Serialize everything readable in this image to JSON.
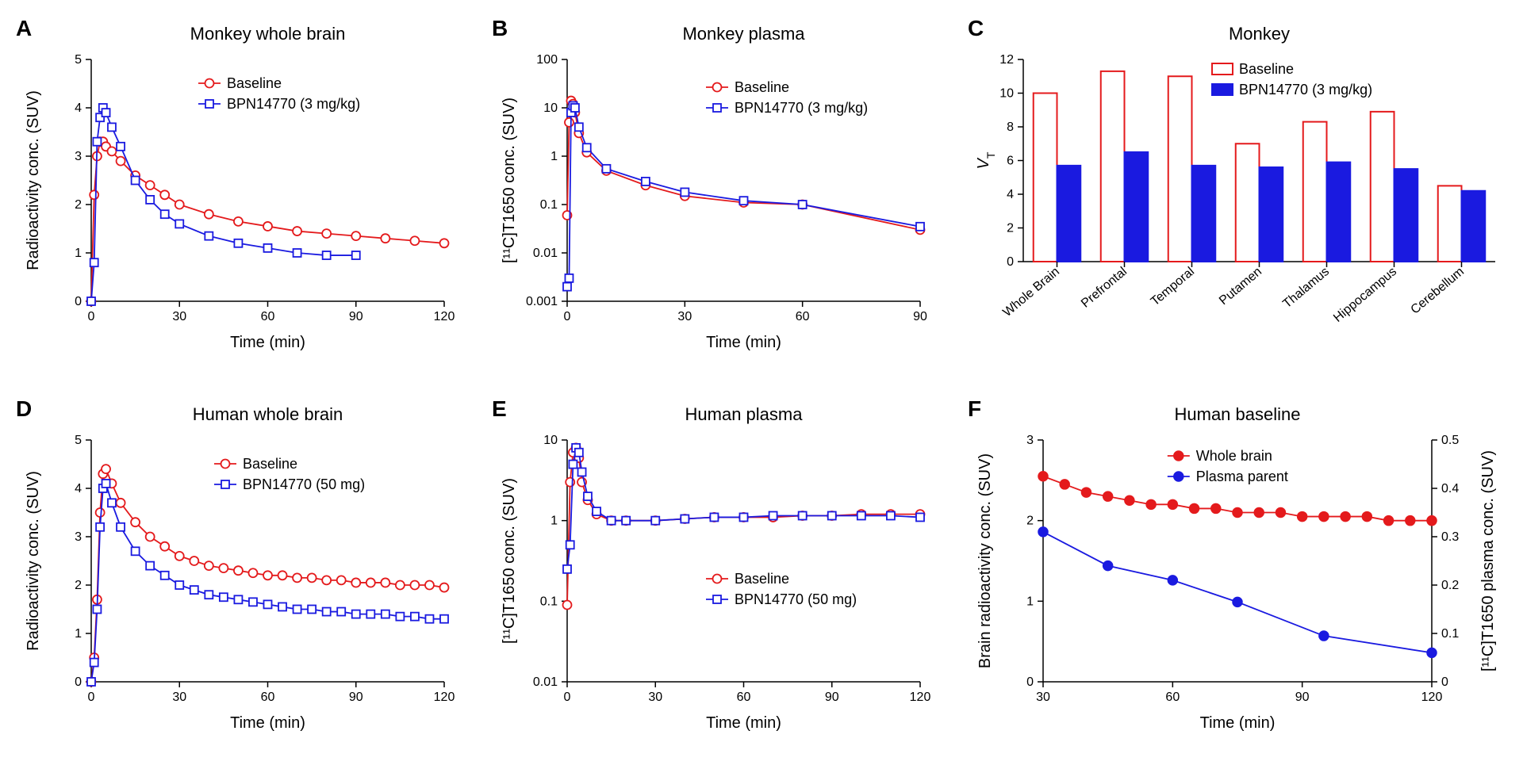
{
  "labels": {
    "A": "A",
    "B": "B",
    "C": "C",
    "D": "D",
    "E": "E",
    "F": "F"
  },
  "colors": {
    "baseline": "#e41a1c",
    "drug": "#1a1ae0",
    "red_fill": "#e41a1c",
    "blue_fill": "#1a1ae0",
    "axis": "#000000",
    "bg": "#ffffff"
  },
  "fonts": {
    "title": 22,
    "axis": 20,
    "tick": 16,
    "legend": 18,
    "label": 28
  },
  "panelA": {
    "title": "Monkey whole brain",
    "xlabel": "Time (min)",
    "ylabel": "Radioactivity conc. (SUV)",
    "xlim": [
      0,
      120
    ],
    "ylim": [
      0,
      5
    ],
    "xticks": [
      0,
      30,
      60,
      90,
      120
    ],
    "yticks": [
      0,
      1,
      2,
      3,
      4,
      5
    ],
    "legend": [
      "Baseline",
      "BPN14770 (3 mg/kg)"
    ],
    "series": [
      {
        "name": "Baseline",
        "color": "#e41a1c",
        "marker": "circle",
        "open": true,
        "x": [
          0,
          1,
          2,
          3,
          4,
          5,
          7,
          10,
          15,
          20,
          25,
          30,
          40,
          50,
          60,
          70,
          80,
          90,
          100,
          110,
          120
        ],
        "y": [
          0,
          2.2,
          3.0,
          3.3,
          3.3,
          3.2,
          3.1,
          2.9,
          2.6,
          2.4,
          2.2,
          2.0,
          1.8,
          1.65,
          1.55,
          1.45,
          1.4,
          1.35,
          1.3,
          1.25,
          1.2
        ]
      },
      {
        "name": "BPN14770 (3 mg/kg)",
        "color": "#1a1ae0",
        "marker": "square",
        "open": true,
        "x": [
          0,
          1,
          2,
          3,
          4,
          5,
          7,
          10,
          15,
          20,
          25,
          30,
          40,
          50,
          60,
          70,
          80,
          90
        ],
        "y": [
          0,
          0.8,
          3.3,
          3.8,
          4.0,
          3.9,
          3.6,
          3.2,
          2.5,
          2.1,
          1.8,
          1.6,
          1.35,
          1.2,
          1.1,
          1.0,
          0.95,
          0.95
        ]
      }
    ]
  },
  "panelB": {
    "title": "Monkey plasma",
    "xlabel": "Time (min)",
    "ylabel": "[¹¹C]T1650 conc. (SUV)",
    "xlim": [
      0,
      90
    ],
    "ylog": true,
    "ylim": [
      0.001,
      100
    ],
    "xticks": [
      0,
      30,
      60,
      90
    ],
    "yticks": [
      0.001,
      0.01,
      0.1,
      1,
      10,
      100
    ],
    "legend": [
      "Baseline",
      "BPN14770 (3 mg/kg)"
    ],
    "series": [
      {
        "name": "Baseline",
        "color": "#e41a1c",
        "marker": "circle",
        "open": true,
        "x": [
          0,
          0.5,
          1,
          1.5,
          2,
          3,
          5,
          10,
          20,
          30,
          45,
          60,
          90
        ],
        "y": [
          0.06,
          5,
          14,
          12,
          8,
          3,
          1.2,
          0.5,
          0.25,
          0.15,
          0.11,
          0.1,
          0.03
        ]
      },
      {
        "name": "BPN14770 (3 mg/kg)",
        "color": "#1a1ae0",
        "marker": "square",
        "open": true,
        "x": [
          0,
          0.5,
          1,
          1.5,
          2,
          3,
          5,
          10,
          20,
          30,
          45,
          60,
          90
        ],
        "y": [
          0.002,
          0.003,
          8,
          11,
          10,
          4,
          1.5,
          0.55,
          0.3,
          0.18,
          0.12,
          0.1,
          0.035
        ]
      }
    ]
  },
  "panelC": {
    "title": "Monkey",
    "ylabel": "Vₜ",
    "ylabel_italic": "V",
    "ylabel_sub": "T",
    "ylim": [
      0,
      12
    ],
    "yticks": [
      0,
      2,
      4,
      6,
      8,
      10,
      12
    ],
    "categories": [
      "Whole Brain",
      "Prefrontal",
      "Temporal",
      "Putamen",
      "Thalamus",
      "Hippocampus",
      "Cerebellum"
    ],
    "legend": [
      "Baseline",
      "BPN14770 (3 mg/kg)"
    ],
    "bars": {
      "Baseline": {
        "color": "#e41a1c",
        "fill": "#ffffff",
        "values": [
          10.0,
          11.3,
          11.0,
          7.0,
          8.3,
          8.9,
          4.5
        ]
      },
      "BPN14770 (3 mg/kg)": {
        "color": "#1a1ae0",
        "fill": "#1a1ae0",
        "values": [
          5.7,
          6.5,
          5.7,
          5.6,
          5.9,
          5.5,
          4.2
        ]
      }
    },
    "bar_width": 0.35
  },
  "panelD": {
    "title": "Human whole brain",
    "xlabel": "Time (min)",
    "ylabel": "Radioactivity conc. (SUV)",
    "xlim": [
      0,
      120
    ],
    "ylim": [
      0,
      5
    ],
    "xticks": [
      0,
      30,
      60,
      90,
      120
    ],
    "yticks": [
      0,
      1,
      2,
      3,
      4,
      5
    ],
    "legend": [
      "Baseline",
      "BPN14770 (50 mg)"
    ],
    "series": [
      {
        "name": "Baseline",
        "color": "#e41a1c",
        "marker": "circle",
        "open": true,
        "x": [
          0,
          1,
          2,
          3,
          4,
          5,
          7,
          10,
          15,
          20,
          25,
          30,
          35,
          40,
          45,
          50,
          55,
          60,
          65,
          70,
          75,
          80,
          85,
          90,
          95,
          100,
          105,
          110,
          115,
          120
        ],
        "y": [
          0,
          0.5,
          1.7,
          3.5,
          4.3,
          4.4,
          4.1,
          3.7,
          3.3,
          3.0,
          2.8,
          2.6,
          2.5,
          2.4,
          2.35,
          2.3,
          2.25,
          2.2,
          2.2,
          2.15,
          2.15,
          2.1,
          2.1,
          2.05,
          2.05,
          2.05,
          2.0,
          2.0,
          2.0,
          1.95
        ]
      },
      {
        "name": "BPN14770 (50 mg)",
        "color": "#1a1ae0",
        "marker": "square",
        "open": true,
        "x": [
          0,
          1,
          2,
          3,
          4,
          5,
          7,
          10,
          15,
          20,
          25,
          30,
          35,
          40,
          45,
          50,
          55,
          60,
          65,
          70,
          75,
          80,
          85,
          90,
          95,
          100,
          105,
          110,
          115,
          120
        ],
        "y": [
          0,
          0.4,
          1.5,
          3.2,
          4.0,
          4.1,
          3.7,
          3.2,
          2.7,
          2.4,
          2.2,
          2.0,
          1.9,
          1.8,
          1.75,
          1.7,
          1.65,
          1.6,
          1.55,
          1.5,
          1.5,
          1.45,
          1.45,
          1.4,
          1.4,
          1.4,
          1.35,
          1.35,
          1.3,
          1.3
        ]
      }
    ]
  },
  "panelE": {
    "title": "Human plasma",
    "xlabel": "Time (min)",
    "ylabel": "[¹¹C]T1650 conc. (SUV)",
    "xlim": [
      0,
      120
    ],
    "ylog": true,
    "ylim": [
      0.01,
      10
    ],
    "xticks": [
      0,
      30,
      60,
      90,
      120
    ],
    "yticks": [
      0.01,
      0.1,
      1,
      10
    ],
    "legend": [
      "Baseline",
      "BPN14770 (50 mg)"
    ],
    "series": [
      {
        "name": "Baseline",
        "color": "#e41a1c",
        "marker": "circle",
        "open": true,
        "x": [
          0,
          1,
          2,
          3,
          4,
          5,
          7,
          10,
          15,
          20,
          30,
          40,
          50,
          60,
          70,
          80,
          90,
          100,
          110,
          120
        ],
        "y": [
          0.09,
          3,
          7,
          8,
          6,
          3,
          1.8,
          1.2,
          1.0,
          1.0,
          1.0,
          1.05,
          1.1,
          1.1,
          1.1,
          1.15,
          1.15,
          1.2,
          1.2,
          1.2
        ]
      },
      {
        "name": "BPN14770 (50 mg)",
        "color": "#1a1ae0",
        "marker": "square",
        "open": true,
        "x": [
          0,
          1,
          2,
          3,
          4,
          5,
          7,
          10,
          15,
          20,
          30,
          40,
          50,
          60,
          70,
          80,
          90,
          100,
          110,
          120
        ],
        "y": [
          0.25,
          0.5,
          5,
          8,
          7,
          4,
          2,
          1.3,
          1.0,
          1.0,
          1.0,
          1.05,
          1.1,
          1.1,
          1.15,
          1.15,
          1.15,
          1.15,
          1.15,
          1.1
        ]
      }
    ]
  },
  "panelF": {
    "title": "Human baseline",
    "xlabel": "Time (min)",
    "ylabel_left": "Brain radioactivity conc. (SUV)",
    "ylabel_right": "[¹¹C]T1650 plasma conc. (SUV)",
    "xlim": [
      30,
      120
    ],
    "xticks": [
      30,
      60,
      90,
      120
    ],
    "ylim_left": [
      0,
      3
    ],
    "yticks_left": [
      0,
      1,
      2,
      3
    ],
    "ylim_right": [
      0,
      0.5
    ],
    "yticks_right": [
      0,
      0.1,
      0.2,
      0.3,
      0.4,
      0.5
    ],
    "legend": [
      "Whole brain",
      "Plasma parent"
    ],
    "series": [
      {
        "name": "Whole brain",
        "axis": "left",
        "color": "#e41a1c",
        "fill": "#e41a1c",
        "marker": "circle",
        "x": [
          30,
          35,
          40,
          45,
          50,
          55,
          60,
          65,
          70,
          75,
          80,
          85,
          90,
          95,
          100,
          105,
          110,
          115,
          120
        ],
        "y": [
          2.55,
          2.45,
          2.35,
          2.3,
          2.25,
          2.2,
          2.2,
          2.15,
          2.15,
          2.1,
          2.1,
          2.1,
          2.05,
          2.05,
          2.05,
          2.05,
          2.0,
          2.0,
          2.0
        ]
      },
      {
        "name": "Plasma parent",
        "axis": "right",
        "color": "#1a1ae0",
        "fill": "#1a1ae0",
        "marker": "circle",
        "x": [
          30,
          45,
          60,
          75,
          95,
          120
        ],
        "y": [
          0.31,
          0.24,
          0.21,
          0.165,
          0.095,
          0.06
        ]
      }
    ]
  }
}
